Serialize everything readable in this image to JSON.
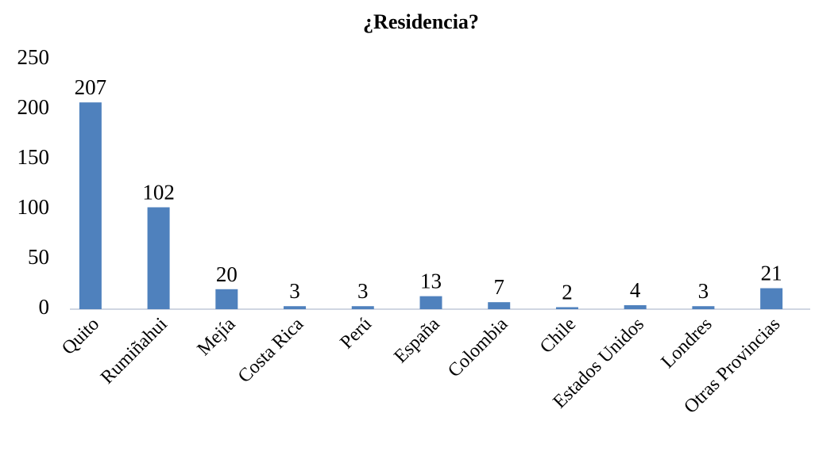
{
  "chart_data": {
    "type": "bar",
    "title": "¿Residencia?",
    "categories": [
      "Quito",
      "Rumiñahui",
      "Mejía",
      "Costa Rica",
      "Perú",
      "España",
      "Colombia",
      "Chile",
      "Estados Unidos",
      "Londres",
      "Otras Provincias"
    ],
    "values": [
      207,
      102,
      20,
      3,
      3,
      13,
      7,
      2,
      4,
      3,
      21
    ],
    "color": "#4f81bd",
    "ylim": [
      0,
      250
    ],
    "yticks": [
      0,
      50,
      100,
      150,
      200,
      250
    ],
    "grid": false
  }
}
